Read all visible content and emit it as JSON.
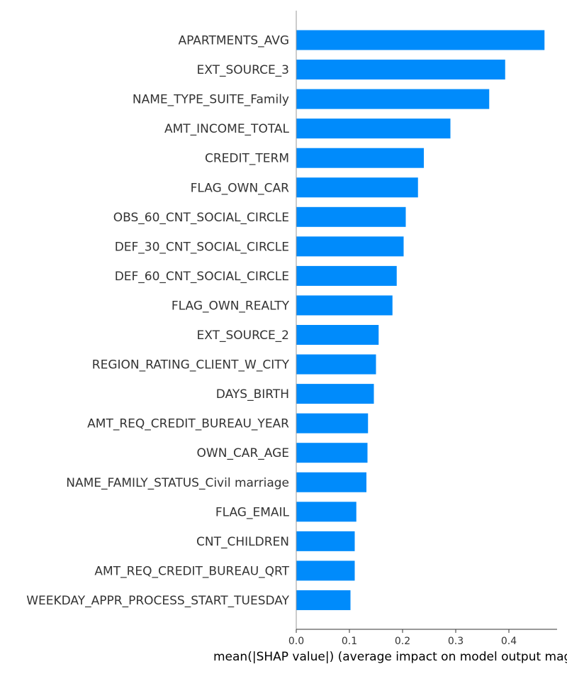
{
  "chart_data": {
    "type": "bar",
    "orientation": "horizontal",
    "categories": [
      "APARTMENTS_AVG",
      "EXT_SOURCE_3",
      "NAME_TYPE_SUITE_Family",
      "AMT_INCOME_TOTAL",
      "CREDIT_TERM",
      "FLAG_OWN_CAR",
      "OBS_60_CNT_SOCIAL_CIRCLE",
      "DEF_30_CNT_SOCIAL_CIRCLE",
      "DEF_60_CNT_SOCIAL_CIRCLE",
      "FLAG_OWN_REALTY",
      "EXT_SOURCE_2",
      "REGION_RATING_CLIENT_W_CITY",
      "DAYS_BIRTH",
      "AMT_REQ_CREDIT_BUREAU_YEAR",
      "OWN_CAR_AGE",
      "NAME_FAMILY_STATUS_Civil marriage",
      "FLAG_EMAIL",
      "CNT_CHILDREN",
      "AMT_REQ_CREDIT_BUREAU_QRT",
      "WEEKDAY_APPR_PROCESS_START_TUESDAY"
    ],
    "values": [
      0.467,
      0.393,
      0.363,
      0.29,
      0.24,
      0.229,
      0.206,
      0.202,
      0.189,
      0.181,
      0.155,
      0.15,
      0.146,
      0.135,
      0.134,
      0.132,
      0.113,
      0.11,
      0.11,
      0.102
    ],
    "xticks": [
      "0.0",
      "0.1",
      "0.2",
      "0.3",
      "0.4"
    ],
    "xlim": [
      0,
      0.49
    ],
    "xlabel": "mean(|SHAP value|) (average impact on model output magnitude)",
    "title": "",
    "grid": false,
    "bar_color": "#008bfb"
  }
}
